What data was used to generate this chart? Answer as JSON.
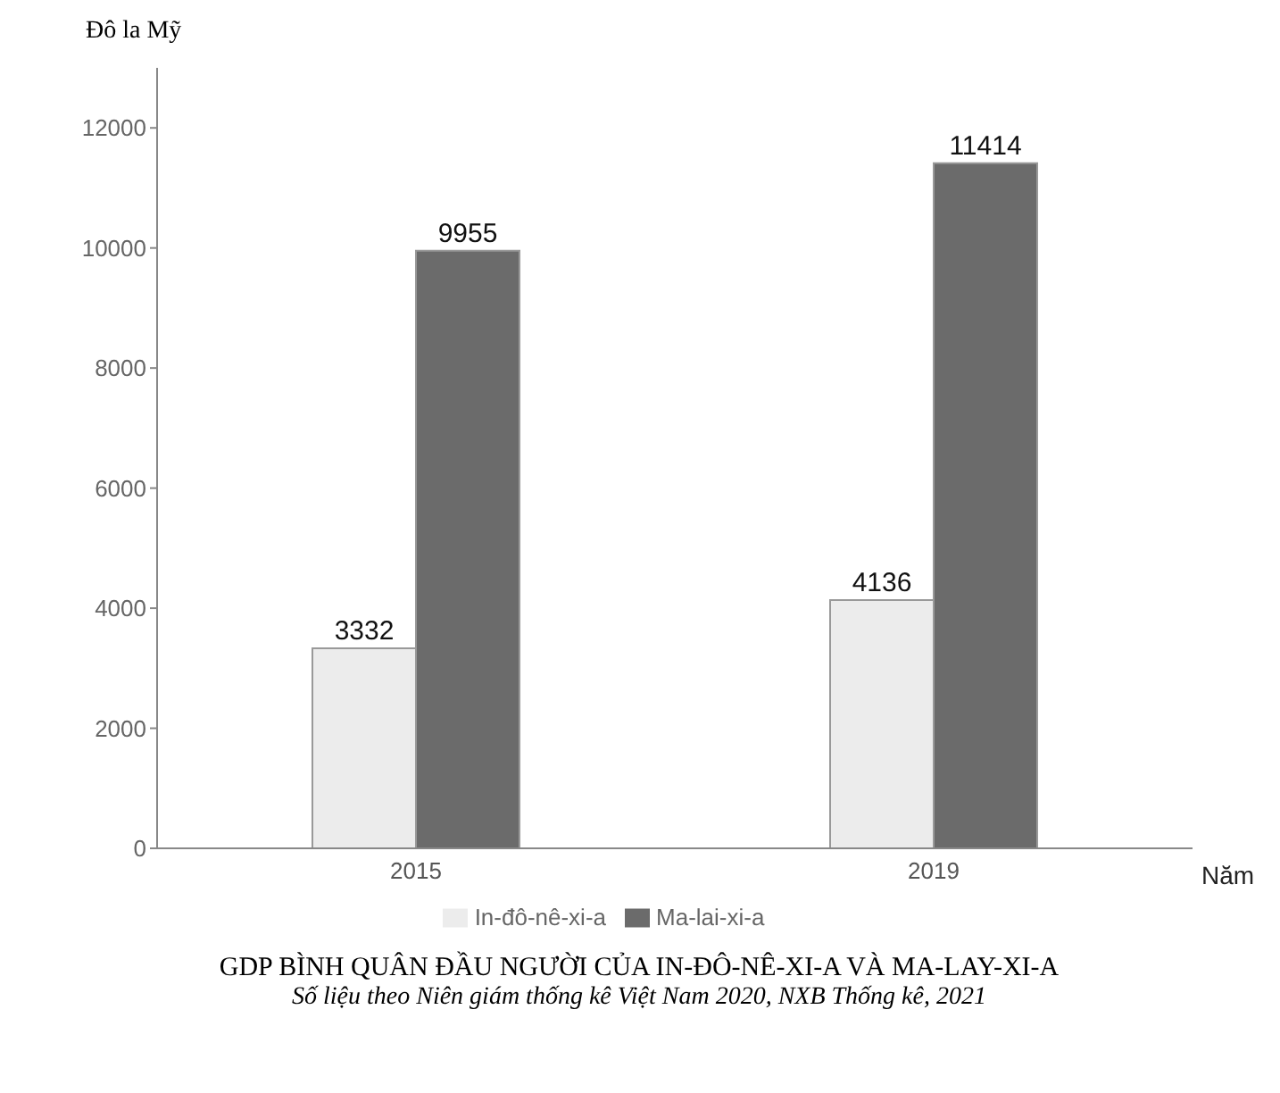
{
  "chart_data": {
    "type": "bar",
    "title": "GDP BÌNH QUÂN ĐẦU NGƯỜI CỦA IN-ĐÔ-NÊ-XI-A VÀ MA-LAY-XI-A",
    "subtitle": "Số liệu theo Niên giám thống kê Việt Nam 2020, NXB Thống kê, 2021",
    "ylabel": "Đô la Mỹ",
    "xlabel": "Năm",
    "categories": [
      "2015",
      "2019"
    ],
    "series": [
      {
        "name": "In-đô-nê-xi-a",
        "color": "#ececec",
        "values": [
          3332,
          4136
        ]
      },
      {
        "name": "Ma-lai-xi-a",
        "color": "#6b6b6b",
        "values": [
          9955,
          11414
        ]
      }
    ],
    "ylim": [
      0,
      13000
    ],
    "yticks": [
      0,
      2000,
      4000,
      6000,
      8000,
      10000,
      12000
    ],
    "data_labels": true,
    "legend": "bottom",
    "grid": false
  }
}
